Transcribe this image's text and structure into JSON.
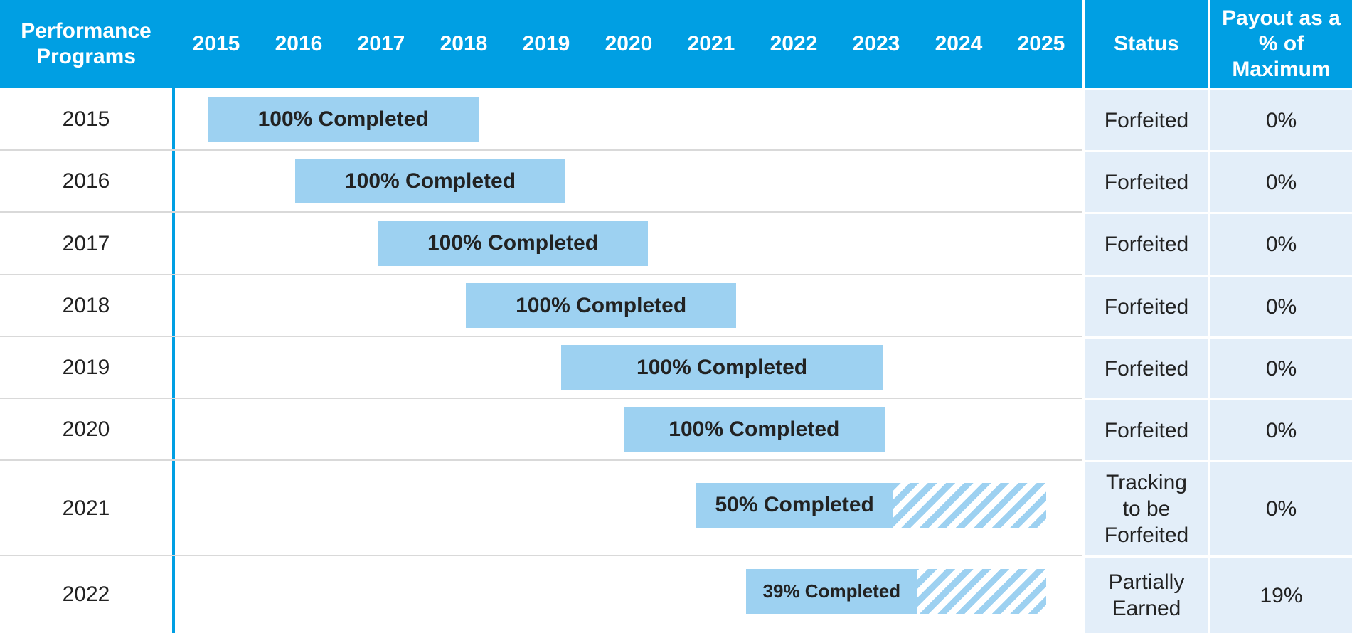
{
  "chart_data": {
    "type": "gantt",
    "headers": {
      "program": "Performance Programs",
      "status": "Status",
      "payout": "Payout as a % of Maximum"
    },
    "xlim": [
      2014.5,
      2025.5
    ],
    "xticks": [
      2015,
      2016,
      2017,
      2018,
      2019,
      2020,
      2021,
      2022,
      2023,
      2024,
      2025
    ],
    "categories": [
      "2015",
      "2016",
      "2017",
      "2018",
      "2019",
      "2020",
      "2021",
      "2022"
    ],
    "start": [
      2014.9,
      2015.96,
      2016.96,
      2018.03,
      2019.18,
      2019.94,
      2020.82,
      2021.42
    ],
    "end": [
      2018.18,
      2019.23,
      2020.23,
      2021.3,
      2023.08,
      2023.1,
      2023.2,
      2023.5
    ],
    "projected_end": [
      null,
      null,
      null,
      null,
      null,
      null,
      2025.06,
      2025.06
    ],
    "labels": [
      "100% Completed",
      "100% Completed",
      "100% Completed",
      "100% Completed",
      "100% Completed",
      "100% Completed",
      "50% Completed",
      "39% Completed"
    ],
    "status": [
      "Forfeited",
      "Forfeited",
      "Forfeited",
      "Forfeited",
      "Forfeited",
      "Forfeited",
      "Tracking to be Forfeited",
      "Partially Earned"
    ],
    "values": [
      0,
      0,
      0,
      0,
      0,
      0,
      0,
      19
    ],
    "value_labels": [
      "0%",
      "0%",
      "0%",
      "0%",
      "0%",
      "0%",
      "0%",
      "19%"
    ],
    "bar_color": "#9dd1f1",
    "header_color": "#009fe3",
    "cell_color": "#e3eef9"
  }
}
